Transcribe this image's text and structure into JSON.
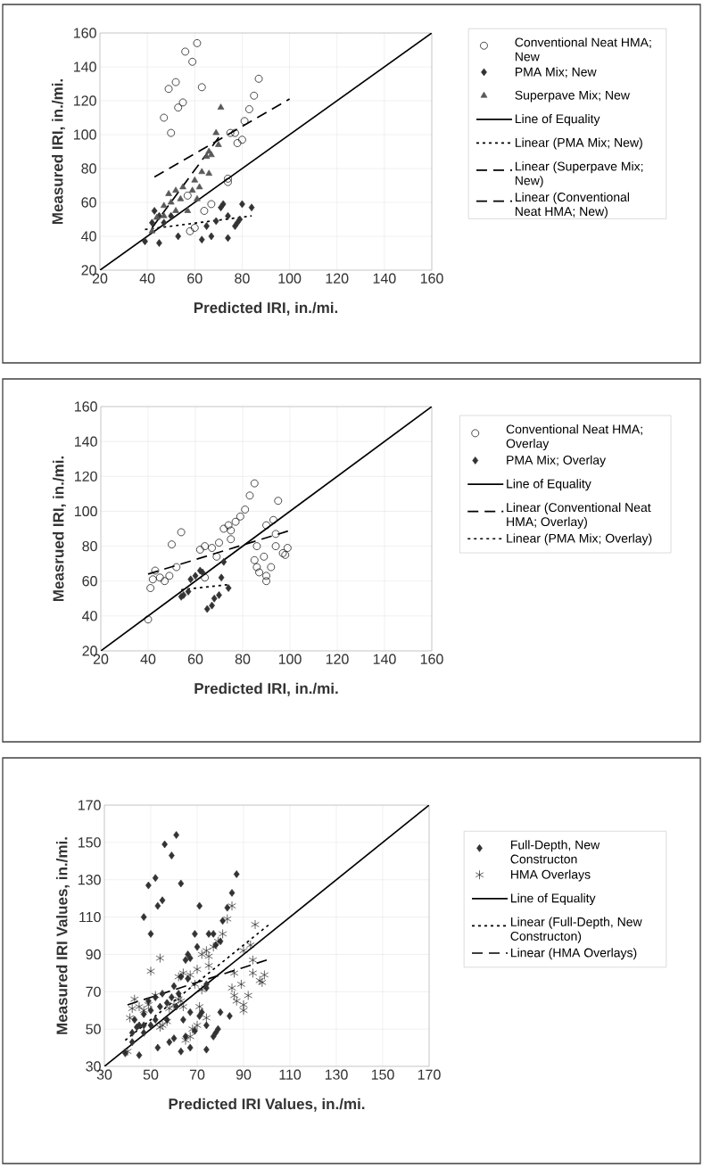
{
  "chart_data": [
    {
      "type": "scatter",
      "xlabel": "Predicted IRI, in./mi.",
      "ylabel": "Measured IRI, in./mi.",
      "xlim": [
        20,
        160
      ],
      "ylim": [
        20,
        160
      ],
      "xticks": [
        20,
        40,
        60,
        80,
        100,
        120,
        140,
        160
      ],
      "yticks": [
        20,
        40,
        60,
        80,
        100,
        120,
        140,
        160
      ],
      "grid": true,
      "legend": "right",
      "series": [
        {
          "name": "Conventional Neat HMA; New",
          "marker": "circle",
          "color": "#000000",
          "x": [
            61,
            56,
            59,
            52,
            49,
            63,
            47,
            53,
            55,
            50,
            87,
            85,
            83,
            81,
            75,
            77,
            78,
            80,
            74,
            74,
            67,
            64,
            58,
            60,
            57
          ],
          "values": [
            154,
            149,
            143,
            131,
            127,
            128,
            110,
            116,
            119,
            101,
            133,
            123,
            115,
            108,
            101,
            101,
            95,
            97,
            74,
            72,
            59,
            55,
            43,
            45,
            64
          ]
        },
        {
          "name": "PMA Mix; New",
          "marker": "diamond",
          "color": "#333333",
          "x": [
            39,
            45,
            53,
            63,
            67,
            65,
            69,
            74,
            74,
            72,
            78,
            79,
            77,
            80,
            84,
            43,
            42,
            45,
            47,
            50,
            71
          ],
          "values": [
            37,
            36,
            40,
            38,
            40,
            46,
            49,
            39,
            52,
            59,
            48,
            50,
            46,
            59,
            57,
            55,
            48,
            52,
            48,
            52,
            57
          ]
        },
        {
          "name": "Superpave Mix; New",
          "marker": "triangle",
          "color": "#595959",
          "x": [
            71,
            69,
            70,
            67,
            65,
            66,
            63,
            66,
            60,
            59,
            62,
            55,
            52,
            49,
            50,
            54,
            47,
            57,
            44,
            42,
            47,
            52,
            61
          ],
          "values": [
            116,
            101,
            94,
            88,
            87,
            90,
            78,
            77,
            73,
            67,
            69,
            69,
            67,
            65,
            60,
            62,
            58,
            55,
            51,
            43,
            52,
            55,
            62
          ]
        },
        {
          "name": "Line of Equality",
          "type": "line",
          "line_style": "solid",
          "color": "#000000",
          "x": [
            20,
            160
          ],
          "values": [
            20,
            160
          ]
        },
        {
          "name": "Linear (PMA Mix; New)",
          "type": "line",
          "line_style": "dotted",
          "color": "#000000",
          "x": [
            39,
            84
          ],
          "values": [
            44,
            52
          ]
        },
        {
          "name": "Linear (Superpave Mix; New)",
          "type": "line",
          "line_style": "dashed",
          "color": "#000000",
          "x": [
            42,
            71
          ],
          "values": [
            45,
            100
          ]
        },
        {
          "name": "Linear (Conventional Neat HMA; New)",
          "type": "line",
          "line_style": "dashed",
          "color": "#000000",
          "x": [
            43,
            100
          ],
          "values": [
            75,
            121
          ]
        }
      ]
    },
    {
      "type": "scatter",
      "xlabel": "Predicted IRI, in./mi.",
      "ylabel": "Measrued IRI, in./mi.",
      "xlim": [
        20,
        160
      ],
      "ylim": [
        20,
        160
      ],
      "xticks": [
        20,
        40,
        60,
        80,
        100,
        120,
        140,
        160
      ],
      "yticks": [
        20,
        40,
        60,
        80,
        100,
        120,
        140,
        160
      ],
      "grid": true,
      "legend": "right",
      "series": [
        {
          "name": "Conventional Neat HMA; Overlay",
          "marker": "circle",
          "color": "#000000",
          "x": [
            40,
            41,
            43,
            42,
            45,
            47,
            49,
            52,
            50,
            54,
            64,
            62,
            64,
            67,
            69,
            70,
            72,
            74,
            75,
            75,
            77,
            79,
            81,
            83,
            85,
            85,
            86,
            86,
            87,
            89,
            90,
            90,
            92,
            90,
            93,
            94,
            95,
            94,
            97,
            98,
            99
          ],
          "values": [
            38,
            56,
            66,
            61,
            62,
            60,
            63,
            68,
            81,
            88,
            62,
            78,
            80,
            79,
            74,
            82,
            90,
            92,
            89,
            84,
            94,
            97,
            101,
            109,
            116,
            72,
            80,
            68,
            65,
            74,
            63,
            60,
            68,
            92,
            95,
            87,
            106,
            80,
            76,
            75,
            79
          ]
        },
        {
          "name": "PMA Mix; Overlay",
          "marker": "diamond",
          "color": "#333333",
          "x": [
            54,
            55,
            57,
            58,
            60,
            62,
            63,
            65,
            67,
            68,
            70,
            71,
            72,
            74
          ],
          "values": [
            51,
            52,
            54,
            61,
            63,
            66,
            65,
            44,
            46,
            50,
            52,
            62,
            71,
            56
          ]
        },
        {
          "name": "Line of Equality",
          "type": "line",
          "line_style": "solid",
          "color": "#000000",
          "x": [
            20,
            160
          ],
          "values": [
            20,
            160
          ]
        },
        {
          "name": "Linear (Conventional Neat HMA; Overlay)",
          "type": "line",
          "line_style": "dashed",
          "color": "#000000",
          "x": [
            40,
            100
          ],
          "values": [
            64,
            89
          ]
        },
        {
          "name": "Linear (PMA Mix; Overlay)",
          "type": "line",
          "line_style": "dotted",
          "color": "#000000",
          "x": [
            54,
            74
          ],
          "values": [
            55,
            58
          ]
        }
      ]
    },
    {
      "type": "scatter",
      "xlabel": "Predicted IRI Values, in./mi.",
      "ylabel": "Measured IRI Values, in./mi.",
      "xlim": [
        30,
        170
      ],
      "ylim": [
        30,
        170
      ],
      "xticks": [
        30,
        50,
        70,
        90,
        110,
        130,
        150,
        170
      ],
      "yticks": [
        30,
        50,
        70,
        90,
        110,
        130,
        150,
        170
      ],
      "grid": true,
      "legend": "right",
      "series": [
        {
          "name": "Full-Depth, New Constructon",
          "marker": "diamond",
          "color": "#333333",
          "x": [
            61,
            56,
            59,
            52,
            49,
            63,
            47,
            53,
            55,
            50,
            87,
            85,
            83,
            81,
            75,
            77,
            78,
            80,
            74,
            74,
            67,
            64,
            58,
            60,
            57,
            39,
            45,
            53,
            63,
            67,
            65,
            69,
            74,
            74,
            72,
            78,
            79,
            77,
            80,
            84,
            43,
            42,
            45,
            47,
            50,
            71,
            71,
            69,
            70,
            67,
            65,
            66,
            63,
            66,
            60,
            59,
            62,
            55,
            52,
            49,
            50,
            54,
            47,
            57,
            44,
            42,
            47,
            52,
            61
          ],
          "values": [
            154,
            149,
            143,
            131,
            127,
            128,
            110,
            116,
            119,
            101,
            133,
            123,
            115,
            108,
            101,
            101,
            95,
            97,
            74,
            72,
            59,
            55,
            43,
            45,
            64,
            37,
            36,
            40,
            38,
            40,
            46,
            49,
            39,
            52,
            59,
            48,
            50,
            46,
            59,
            57,
            55,
            48,
            52,
            48,
            52,
            57,
            116,
            101,
            94,
            88,
            87,
            90,
            78,
            77,
            73,
            67,
            69,
            69,
            67,
            65,
            60,
            62,
            58,
            55,
            51,
            43,
            52,
            55,
            62
          ]
        },
        {
          "name": "HMA Overlays",
          "marker": "cross",
          "color": "#222222",
          "x": [
            40,
            41,
            43,
            42,
            45,
            47,
            49,
            52,
            50,
            54,
            64,
            62,
            64,
            67,
            69,
            70,
            72,
            74,
            75,
            75,
            77,
            79,
            81,
            83,
            85,
            85,
            86,
            86,
            87,
            89,
            90,
            90,
            92,
            90,
            93,
            94,
            95,
            94,
            97,
            98,
            99,
            54,
            55,
            57,
            58,
            60,
            62,
            63,
            65,
            67,
            68,
            70,
            71,
            72,
            74
          ],
          "values": [
            38,
            56,
            66,
            61,
            62,
            60,
            63,
            68,
            81,
            88,
            62,
            78,
            80,
            79,
            74,
            82,
            90,
            92,
            89,
            84,
            94,
            97,
            101,
            109,
            116,
            72,
            80,
            68,
            65,
            74,
            63,
            60,
            68,
            92,
            95,
            87,
            106,
            80,
            76,
            75,
            79,
            51,
            52,
            54,
            61,
            63,
            66,
            65,
            44,
            46,
            50,
            52,
            62,
            71,
            56
          ]
        },
        {
          "name": "Line of Equality",
          "type": "line",
          "line_style": "solid",
          "color": "#000000",
          "x": [
            30,
            170
          ],
          "values": [
            30,
            170
          ]
        },
        {
          "name": "Linear (Full-Depth, New Constructon)",
          "type": "line",
          "line_style": "dotted",
          "color": "#000000",
          "x": [
            39,
            101
          ],
          "values": [
            44,
            106
          ]
        },
        {
          "name": "Linear (HMA Overlays)",
          "type": "line",
          "line_style": "dashed",
          "color": "#000000",
          "x": [
            40,
            100
          ],
          "values": [
            63,
            87
          ]
        }
      ]
    }
  ]
}
